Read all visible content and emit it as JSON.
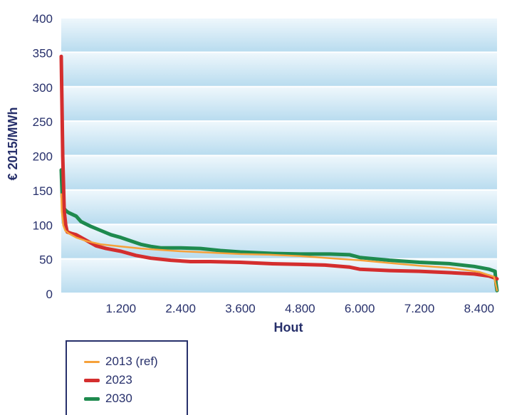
{
  "chart_data": {
    "type": "line",
    "title": "",
    "xlabel": "Hout",
    "ylabel": "€ 2015/MWh",
    "xlim": [
      0,
      8760
    ],
    "ylim": [
      0,
      400
    ],
    "x_ticks": [
      1200,
      2400,
      3600,
      4800,
      6000,
      7200,
      8400
    ],
    "x_tick_labels": [
      "1.200",
      "2.400",
      "3.600",
      "4.800",
      "6.000",
      "7.200",
      "8.400"
    ],
    "y_ticks": [
      0,
      50,
      100,
      150,
      200,
      250,
      300,
      350,
      400
    ],
    "y_tick_labels": [
      "0",
      "50",
      "100",
      "150",
      "200",
      "250",
      "300",
      "350",
      "400"
    ],
    "grid": "horizontal bands",
    "legend_position": "bottom-left",
    "series": [
      {
        "name": "2013 (ref)",
        "color": "#f6a13a",
        "x": [
          0,
          10,
          40,
          80,
          150,
          300,
          500,
          800,
          1200,
          1600,
          2000,
          2400,
          3000,
          3600,
          4200,
          4800,
          5400,
          6000,
          6600,
          7200,
          7800,
          8400,
          8700,
          8760
        ],
        "y": [
          145,
          120,
          100,
          92,
          88,
          82,
          77,
          72,
          69,
          66,
          64,
          62,
          60,
          58,
          57,
          55,
          52,
          49,
          45,
          41,
          38,
          32,
          25,
          5
        ]
      },
      {
        "name": "2023",
        "color": "#d42e2e",
        "x": [
          0,
          30,
          60,
          90,
          120,
          200,
          300,
          500,
          700,
          900,
          1200,
          1500,
          1800,
          2200,
          2600,
          3000,
          3600,
          4200,
          4800,
          5300,
          5800,
          6000,
          6600,
          7200,
          7800,
          8300,
          8600,
          8760
        ],
        "y": [
          345,
          200,
          120,
          100,
          90,
          88,
          86,
          78,
          70,
          66,
          62,
          56,
          52,
          49,
          47,
          47,
          46,
          44,
          43,
          42,
          39,
          36,
          34,
          33,
          31,
          29,
          26,
          22
        ]
      },
      {
        "name": "2030",
        "color": "#1e8a4e",
        "x": [
          0,
          20,
          50,
          80,
          110,
          150,
          300,
          400,
          600,
          800,
          1000,
          1200,
          1400,
          1600,
          1800,
          2000,
          2400,
          2800,
          3200,
          3600,
          4200,
          4800,
          5400,
          5800,
          6000,
          6600,
          7200,
          7800,
          8300,
          8600,
          8720,
          8740,
          8760
        ],
        "y": [
          180,
          140,
          125,
          122,
          120,
          118,
          113,
          105,
          98,
          92,
          86,
          82,
          77,
          72,
          69,
          67,
          67,
          66,
          63,
          61,
          59,
          58,
          58,
          57,
          53,
          49,
          46,
          44,
          40,
          36,
          33,
          15,
          5
        ]
      }
    ]
  }
}
